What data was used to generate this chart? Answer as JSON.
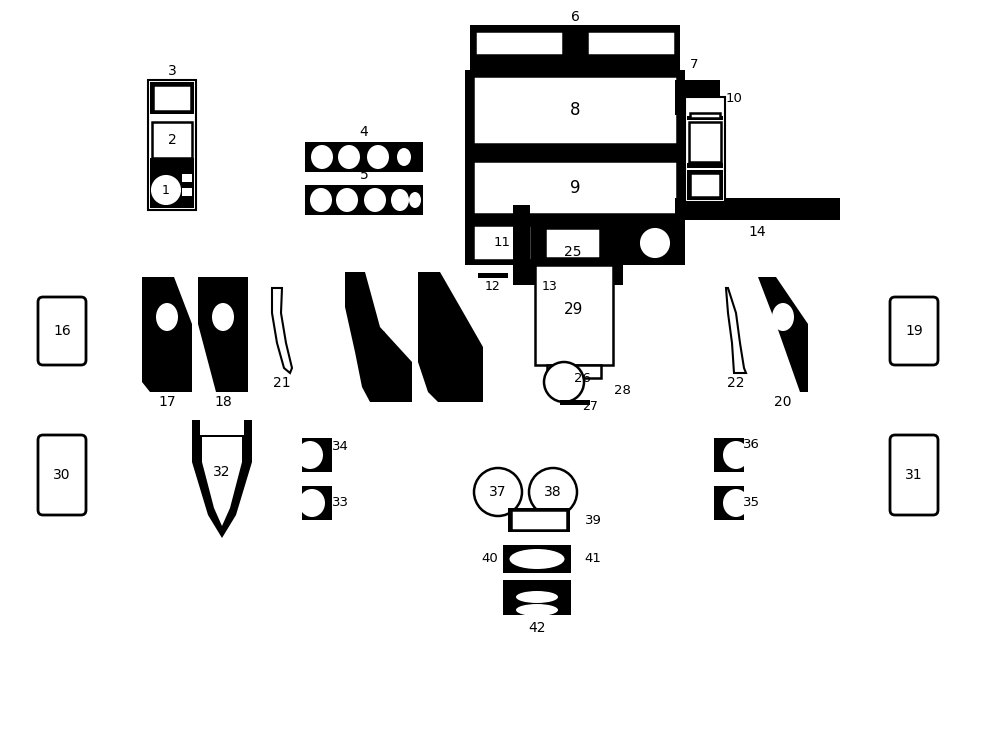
{
  "bg_color": "#ffffff",
  "fg_color": "#000000",
  "lw": 1.8
}
